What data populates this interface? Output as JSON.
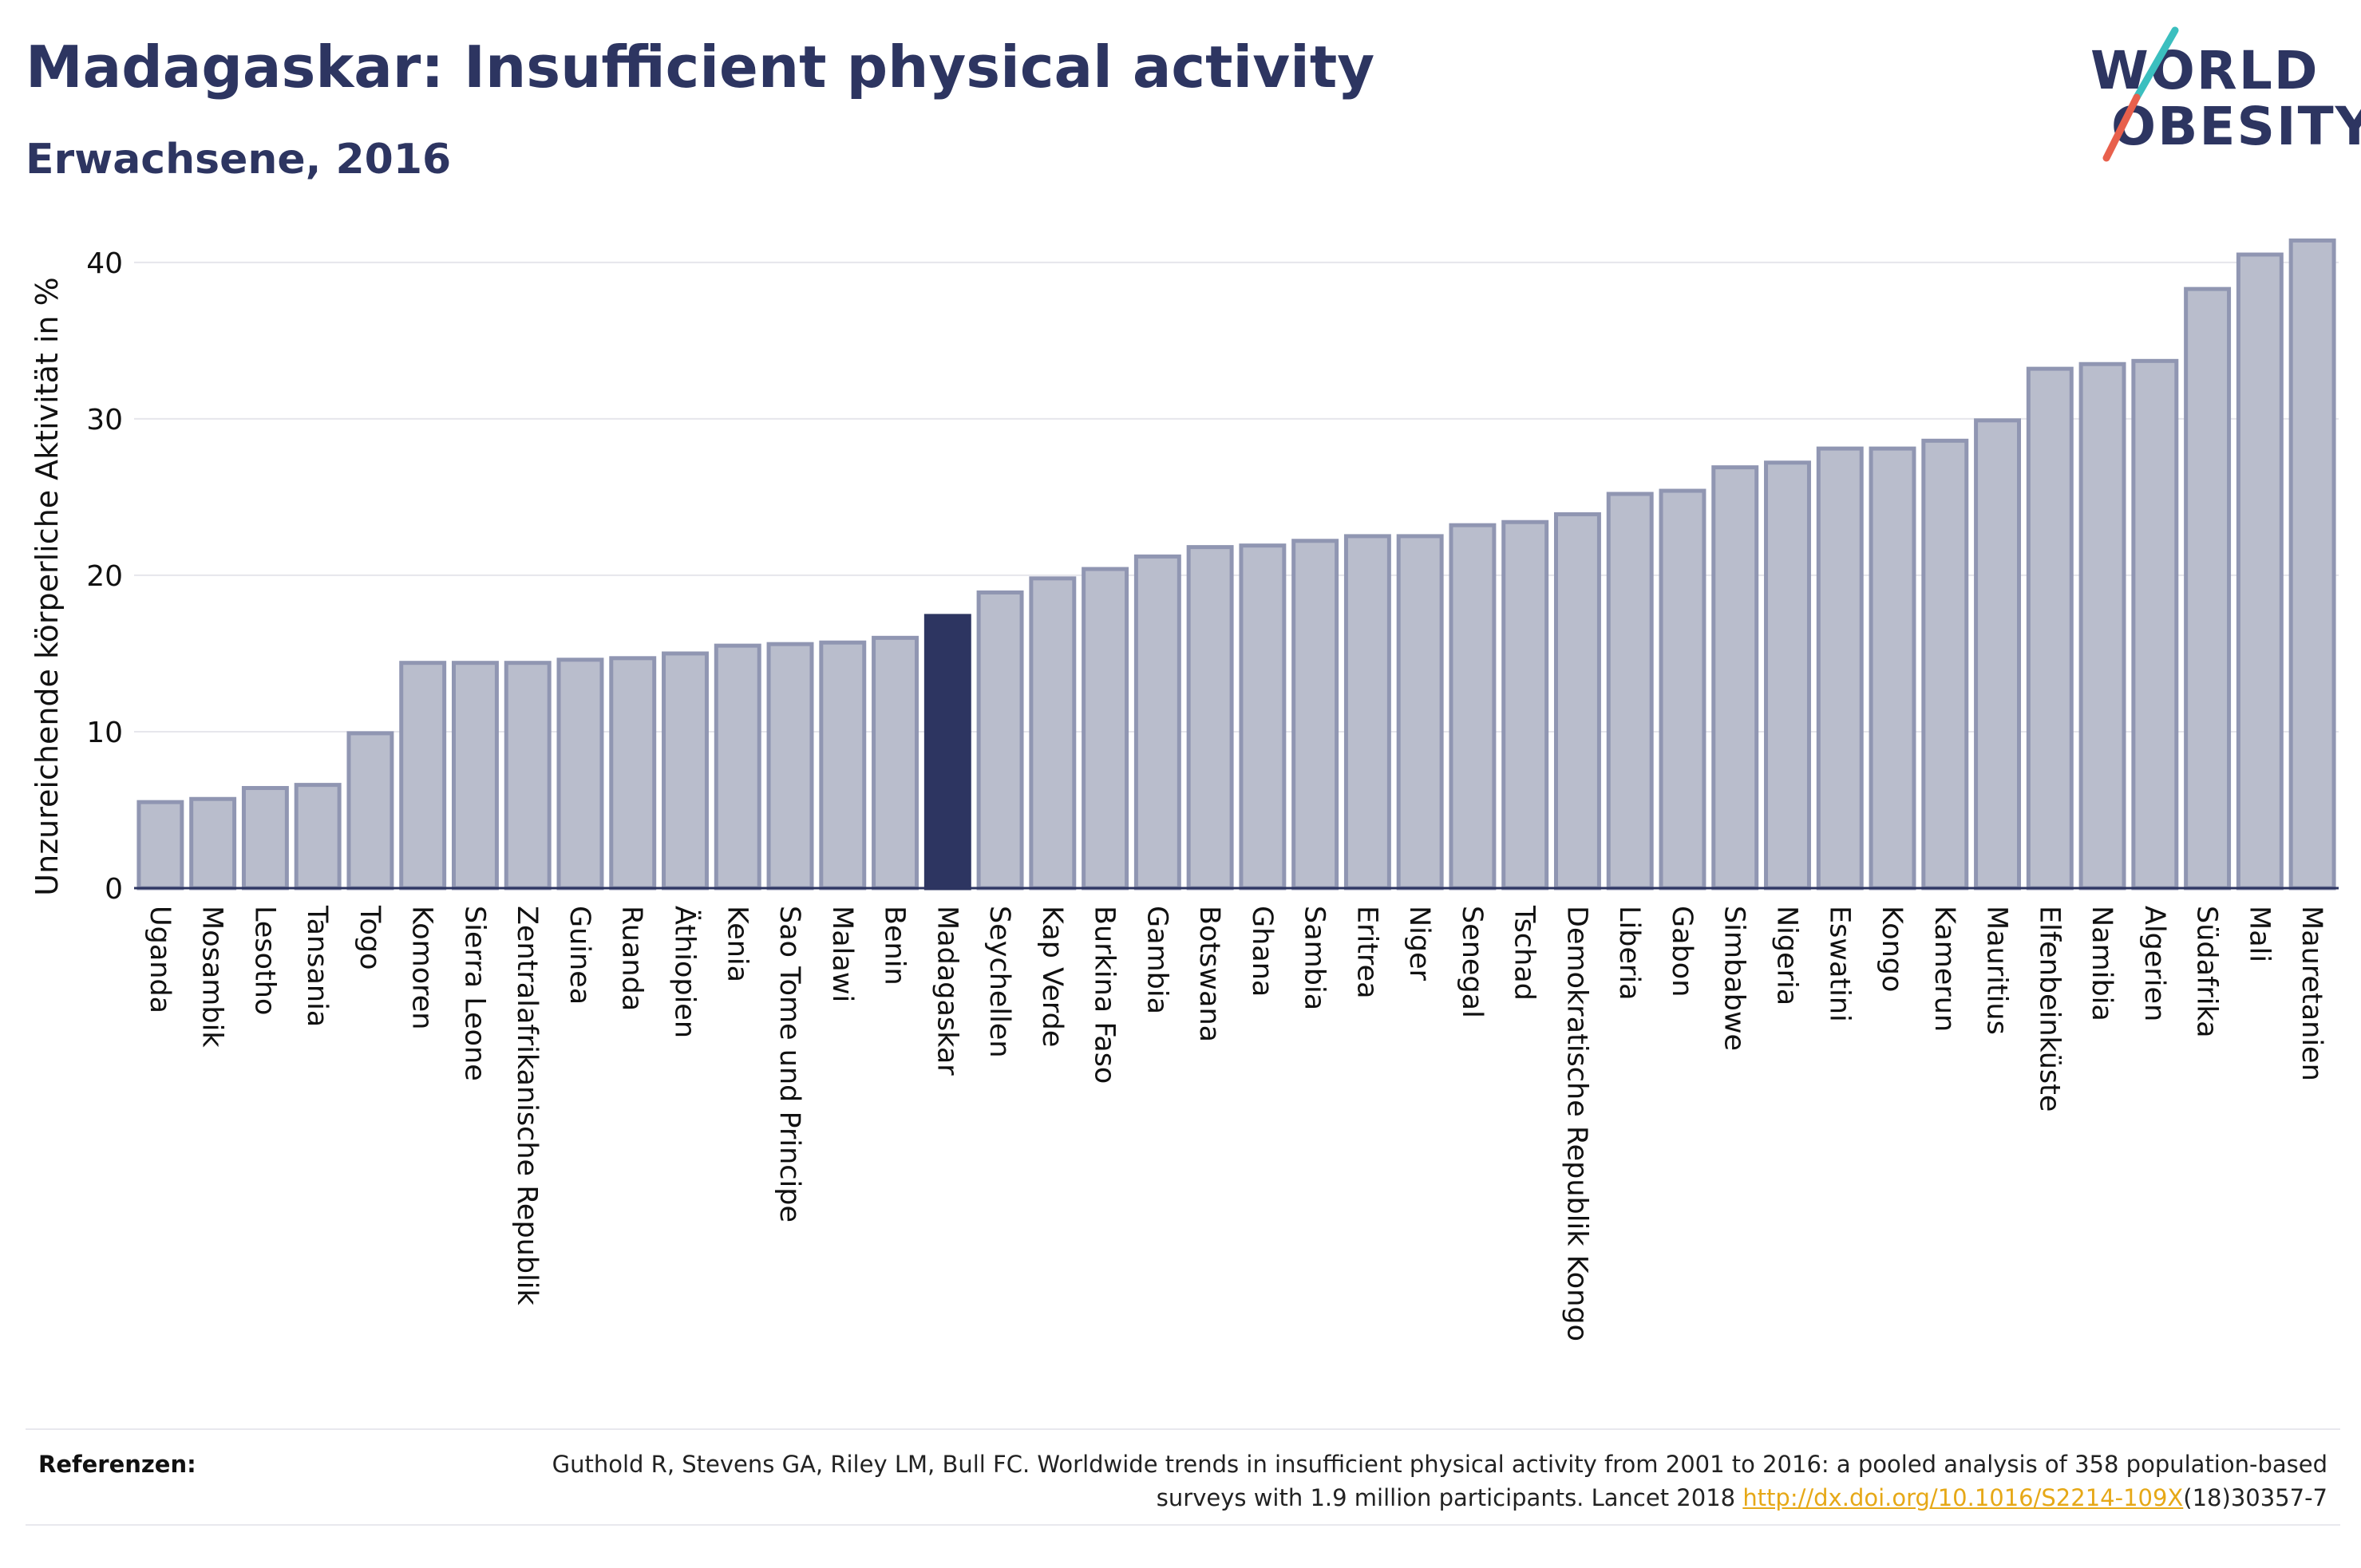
{
  "header": {
    "title": "Madagaskar: Insufficient physical activity",
    "subtitle": "Erwachsene, 2016"
  },
  "logo": {
    "line1": "WORLD",
    "line2": "OBESITY"
  },
  "colors": {
    "bar": "#b9bdcc",
    "bar_border": "#9096b2",
    "highlight": "#2d3561",
    "grid": "#e6e6ec",
    "text": "#2d3561",
    "link": "#e6a817",
    "logo_teal": "#3bbfbf",
    "logo_red": "#e8604c"
  },
  "chart_data": {
    "type": "bar",
    "title": "Madagaskar: Insufficient physical activity",
    "subtitle": "Erwachsene, 2016",
    "ylabel": "Unzureichende körperliche Aktivität in %",
    "xlabel": "",
    "ylim": [
      0,
      43
    ],
    "yticks": [
      0,
      10,
      20,
      30,
      40
    ],
    "grid": true,
    "highlight": "Madagaskar",
    "categories": [
      "Uganda",
      "Mosambik",
      "Lesotho",
      "Tansania",
      "Togo",
      "Komoren",
      "Sierra Leone",
      "Zentralafrikanische Republik",
      "Guinea",
      "Ruanda",
      "Äthiopien",
      "Kenia",
      "Sao Tome und Principe",
      "Malawi",
      "Benin",
      "Madagaskar",
      "Seychellen",
      "Kap Verde",
      "Burkina Faso",
      "Gambia",
      "Botswana",
      "Ghana",
      "Sambia",
      "Eritrea",
      "Niger",
      "Senegal",
      "Tschad",
      "Demokratische Republik Kongo",
      "Liberia",
      "Gabon",
      "Simbabwe",
      "Nigeria",
      "Eswatini",
      "Kongo",
      "Kamerun",
      "Mauritius",
      "Elfenbeinküste",
      "Namibia",
      "Algerien",
      "Südafrika",
      "Mali",
      "Mauretanien"
    ],
    "values": [
      5.5,
      5.7,
      6.4,
      6.6,
      9.9,
      14.4,
      14.4,
      14.4,
      14.6,
      14.7,
      15.0,
      15.5,
      15.6,
      15.7,
      16.0,
      17.4,
      18.9,
      19.8,
      20.4,
      21.2,
      21.8,
      21.9,
      22.2,
      22.5,
      22.5,
      23.2,
      23.4,
      23.9,
      25.2,
      25.4,
      26.9,
      27.2,
      28.1,
      28.1,
      28.6,
      29.9,
      33.2,
      33.5,
      33.7,
      38.3,
      40.5,
      41.4
    ]
  },
  "references": {
    "label": "Referenzen:",
    "text_before": "Guthold R, Stevens GA, Riley LM, Bull FC. Worldwide trends in insufficient physical activity from 2001 to 2016: a pooled analysis of 358 population-based surveys with 1.9 million participants. Lancet 2018 ",
    "link": "http://dx.doi.org/10.1016/S2214-109X",
    "text_after": "(18)30357-7"
  }
}
